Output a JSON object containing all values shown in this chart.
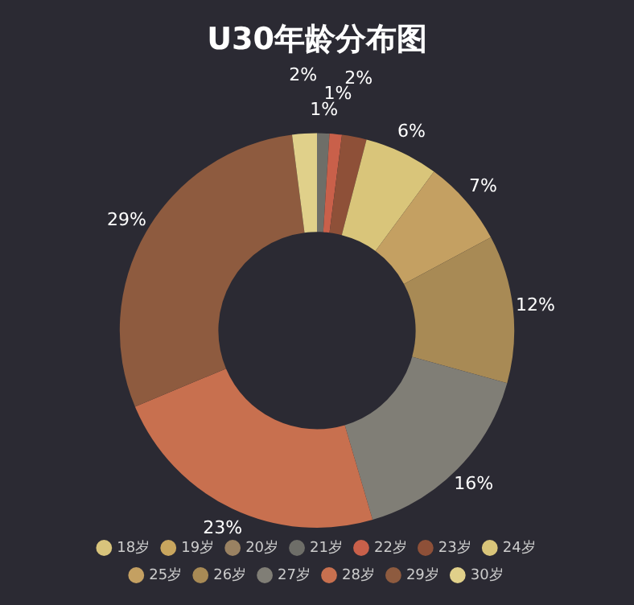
{
  "chart_data": {
    "type": "donut",
    "title": "U30年龄分布图",
    "categories": [
      "18岁",
      "19岁",
      "20岁",
      "21岁",
      "22岁",
      "23岁",
      "24岁",
      "25岁",
      "26岁",
      "27岁",
      "28岁",
      "29岁",
      "30岁"
    ],
    "values": [
      0,
      0,
      0,
      1,
      1,
      2,
      6,
      7,
      12,
      16,
      23,
      29,
      2
    ],
    "colors": [
      "#d8c47c",
      "#c9a65e",
      "#9a8262",
      "#6e6e68",
      "#c9604a",
      "#8e5038",
      "#d9c57a",
      "#c4a062",
      "#a88a55",
      "#807e76",
      "#c8704f",
      "#8e5b3f",
      "#e0d08a"
    ],
    "value_labels": [
      null,
      null,
      null,
      "1%",
      "1%",
      "2%",
      "6%",
      "7%",
      "12%",
      "16%",
      "23%",
      "29%",
      "2%"
    ],
    "legend": "bottom"
  }
}
